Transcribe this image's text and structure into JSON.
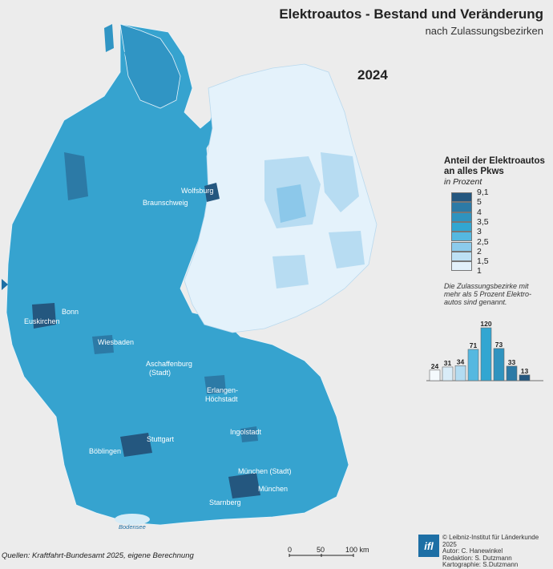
{
  "title": "Elektroautos - Bestand und Veränderung",
  "subtitle": "nach Zulassungsbezirken",
  "year": "2024",
  "legend": {
    "title": "Anteil der Elektroautos an alles Pkws",
    "unit": "in Prozent",
    "classes": [
      {
        "label": "9,1",
        "color": "#24577f"
      },
      {
        "label": "5",
        "color": "#2c7aa6"
      },
      {
        "label": "4",
        "color": "#2f93bf"
      },
      {
        "label": "3,5",
        "color": "#32a6d1"
      },
      {
        "label": "3",
        "color": "#55b8e0"
      },
      {
        "label": "2,5",
        "color": "#8ccbec"
      },
      {
        "label": "2",
        "color": "#bde0f4"
      },
      {
        "label": "1,5",
        "color": "#e2f0fa"
      },
      {
        "label": "1",
        "color": ""
      }
    ],
    "note": "Die Zulassungsbezirke mit mehr als 5 Prozent Elektro-autos sind genannt."
  },
  "chart_data": {
    "type": "bar",
    "title": "",
    "categories": [
      "1-1,5",
      "1,5-2",
      "2-2,5",
      "2,5-3",
      "3-3,5",
      "3,5-4",
      "4-5",
      "5-9,1"
    ],
    "values": [
      24,
      31,
      34,
      71,
      120,
      73,
      33,
      13
    ],
    "colors": [
      "#f4f9fd",
      "#d9ecf8",
      "#b3dcf2",
      "#55b8e0",
      "#32a6d1",
      "#2f93bf",
      "#2c7aa6",
      "#24577f"
    ]
  },
  "cities": [
    {
      "name": "Wolfsburg"
    },
    {
      "name": "Braunschweig"
    },
    {
      "name": "Bonn"
    },
    {
      "name": "Euskirchen"
    },
    {
      "name": "Wiesbaden"
    },
    {
      "name": "Aschaffenburg"
    },
    {
      "name": "(Stadt)"
    },
    {
      "name": "Erlangen-"
    },
    {
      "name": "Höchstadt"
    },
    {
      "name": "Ingolstadt"
    },
    {
      "name": "Stuttgart"
    },
    {
      "name": "Böblingen"
    },
    {
      "name": "München (Stadt)"
    },
    {
      "name": "München"
    },
    {
      "name": "Starnberg"
    }
  ],
  "lake": "Bodensee",
  "source": "Quellen: Kraftfahrt-Bundesamt 2025, eigene Berechnung",
  "scale": {
    "labels": [
      "0",
      "50",
      "100 km"
    ]
  },
  "logo": "ifl",
  "credits": [
    "© Leibniz-Institut für Länderkunde 2025",
    "Autor: C. Hanewinkel",
    "Redaktion: S. Dutzmann",
    "Kartographie: S.Dutzmann"
  ]
}
